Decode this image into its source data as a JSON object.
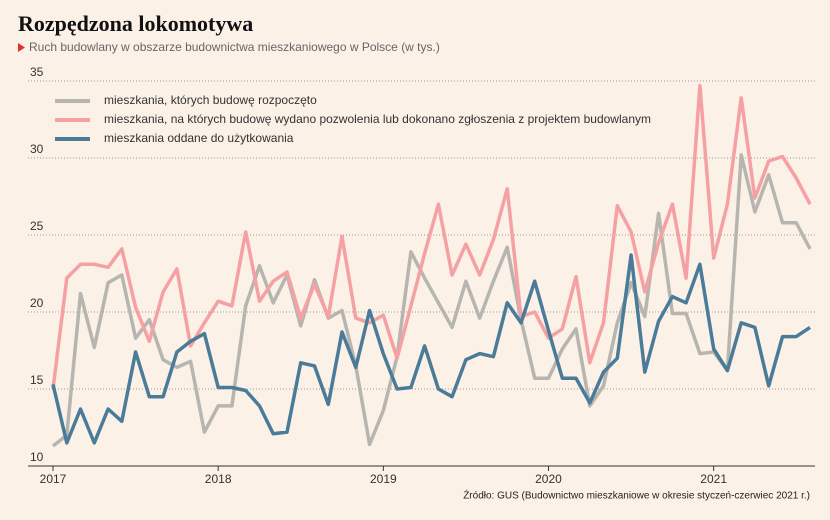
{
  "chart_data": {
    "type": "line",
    "title": "Rozpędzona lokomotywa",
    "subtitle": "Ruch budowlany w obszarze budownictwa mieszkaniowego w Polsce (w tys.)",
    "source": "Źródło: GUS (Budownictwo mieszkaniowe w okresie styczeń-czerwiec 2021 r.)",
    "categories": [
      "2017",
      null,
      null,
      null,
      null,
      null,
      null,
      null,
      null,
      null,
      null,
      null,
      "2018",
      null,
      null,
      null,
      null,
      null,
      null,
      null,
      null,
      null,
      null,
      null,
      "2019",
      null,
      null,
      null,
      null,
      null,
      null,
      null,
      null,
      null,
      null,
      null,
      "2020",
      null,
      null,
      null,
      null,
      null,
      null,
      null,
      null,
      null,
      null,
      null,
      "2021",
      null,
      null,
      null,
      null,
      null,
      null,
      null
    ],
    "series": [
      {
        "name": "mieszkania, których budowę rozpoczęto",
        "color": "#b7b5b0",
        "values": [
          11.3,
          12.0,
          21.2,
          17.7,
          21.9,
          22.4,
          18.3,
          19.5,
          16.9,
          16.4,
          16.8,
          12.2,
          13.9,
          13.9,
          20.4,
          23.0,
          20.6,
          22.4,
          19.1,
          22.1,
          19.6,
          20.1,
          16.5,
          11.4,
          13.6,
          17.1,
          23.9,
          22.2,
          20.6,
          19.0,
          22.0,
          19.6,
          22.0,
          24.2,
          19.5,
          15.7,
          15.7,
          17.6,
          18.9,
          13.9,
          15.2,
          19.3,
          21.9,
          19.7,
          26.4,
          19.9,
          19.9,
          17.3,
          17.4,
          16.2,
          30.2,
          26.5,
          28.9,
          25.8,
          25.8,
          24.1
        ]
      },
      {
        "name": "mieszkania, na których budowę wydano pozwolenia lub dokonano zgłoszenia z projektem budowlanym",
        "color": "#f5a1a3",
        "values": [
          15.0,
          22.2,
          23.1,
          23.1,
          22.9,
          24.1,
          20.3,
          18.1,
          21.3,
          22.8,
          17.8,
          19.3,
          20.7,
          20.4,
          25.2,
          20.7,
          22.0,
          22.6,
          19.6,
          21.8,
          19.7,
          24.9,
          19.6,
          19.3,
          19.8,
          17.0,
          20.4,
          23.8,
          27.0,
          22.4,
          24.4,
          22.4,
          24.7,
          28.0,
          19.7,
          20.0,
          18.3,
          18.9,
          22.3,
          16.7,
          19.3,
          26.9,
          25.2,
          21.3,
          24.5,
          27.0,
          22.2,
          34.7,
          23.5,
          27.0,
          33.9,
          27.4,
          29.8,
          30.1,
          28.7,
          27.0
        ]
      },
      {
        "name": "mieszkania oddane do użytkowania",
        "color": "#4a7b99",
        "values": [
          15.3,
          11.5,
          13.7,
          11.5,
          13.7,
          12.9,
          17.4,
          14.5,
          14.5,
          17.4,
          18.1,
          18.6,
          15.1,
          15.1,
          14.9,
          13.9,
          12.1,
          12.2,
          16.7,
          16.5,
          14.0,
          18.7,
          16.4,
          20.1,
          17.3,
          15.0,
          15.1,
          17.8,
          15.0,
          14.5,
          16.9,
          17.3,
          17.1,
          20.6,
          19.3,
          22.0,
          18.8,
          15.7,
          15.7,
          14.1,
          16.1,
          17.0,
          23.7,
          16.1,
          19.4,
          21.0,
          20.6,
          23.1,
          17.6,
          16.2,
          19.3,
          19.0,
          15.2,
          18.4,
          18.4,
          19.0
        ]
      }
    ],
    "ylim": [
      10,
      35
    ],
    "yticks": [
      10,
      15,
      20,
      25,
      30,
      35
    ],
    "grid": true
  }
}
